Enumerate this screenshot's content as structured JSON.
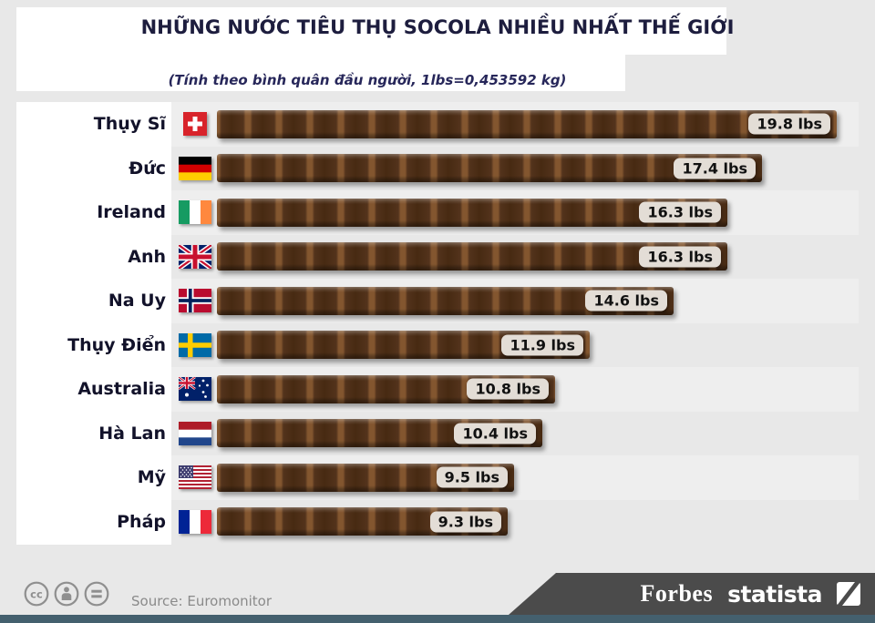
{
  "header": {
    "title": "NHỮNG NƯỚC TIÊU THỤ SOCOLA NHIỀU NHẤT THẾ GIỚI",
    "subtitle": "(Tính theo bình quân đầu người, 1lbs=0,453592 kg)"
  },
  "chart_data": {
    "type": "bar",
    "orientation": "horizontal",
    "title": "NHỮNG NƯỚC TIÊU THỤ SOCOLA NHIỀU NHẤT THẾ GIỚI",
    "subtitle": "(Tính theo bình quân đầu người, 1lbs=0,453592 kg)",
    "unit": "lbs",
    "xlim": [
      0,
      19.8
    ],
    "grid": false,
    "legend": "none",
    "bar_style": "chocolate-bar-segments",
    "rows": [
      {
        "country": "Thụy Sĩ",
        "flag": "switzerland",
        "value": 19.8,
        "label": "19.8 lbs"
      },
      {
        "country": "Đức",
        "flag": "germany",
        "value": 17.4,
        "label": "17.4 lbs"
      },
      {
        "country": "Ireland",
        "flag": "ireland",
        "value": 16.3,
        "label": "16.3 lbs"
      },
      {
        "country": "Anh",
        "flag": "uk",
        "value": 16.3,
        "label": "16.3 lbs"
      },
      {
        "country": "Na Uy",
        "flag": "norway",
        "value": 14.6,
        "label": "14.6 lbs"
      },
      {
        "country": "Thụy Điển",
        "flag": "sweden",
        "value": 11.9,
        "label": "11.9 lbs"
      },
      {
        "country": "Australia",
        "flag": "australia",
        "value": 10.8,
        "label": "10.8 lbs"
      },
      {
        "country": "Hà Lan",
        "flag": "netherlands",
        "value": 10.4,
        "label": "10.4 lbs"
      },
      {
        "country": "Mỹ",
        "flag": "usa",
        "value": 9.5,
        "label": "9.5 lbs"
      },
      {
        "country": "Pháp",
        "flag": "france",
        "value": 9.3,
        "label": "9.3 lbs"
      }
    ]
  },
  "footer": {
    "source": "Source: Euromonitor",
    "license_icons": [
      "cc-icon",
      "attribution-person-icon",
      "equals-icon"
    ],
    "forbes": "Forbes",
    "statista": "statista"
  },
  "colors": {
    "background": "#e8e8e8",
    "chocolate_dark": "#472a12",
    "chocolate_light": "#83562f",
    "value_label_bg": "#e3ddd6",
    "banner": "#4b4b4b",
    "bottom_strip": "#44606e",
    "title_text": "#1d1d3e"
  }
}
